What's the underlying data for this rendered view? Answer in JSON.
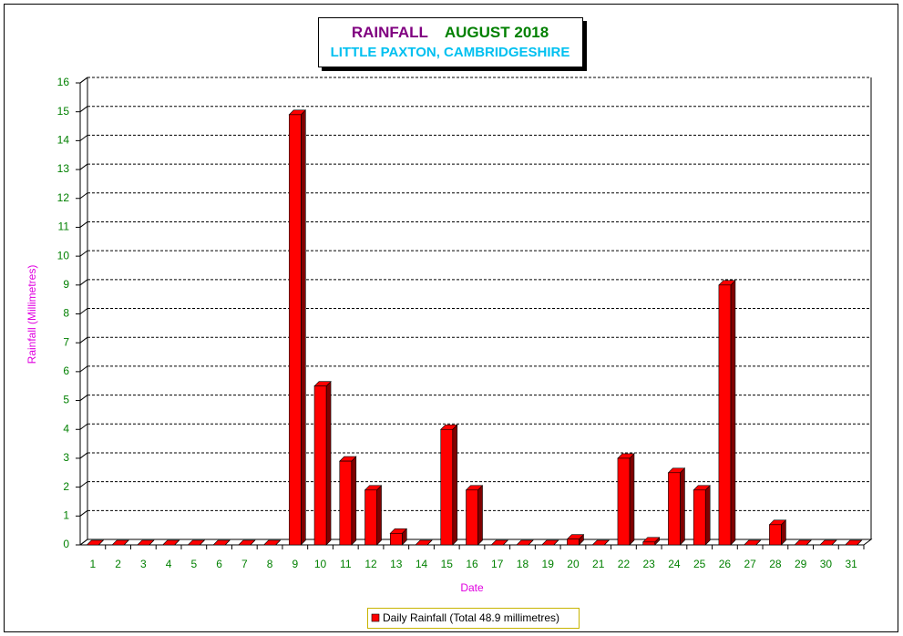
{
  "chart_data": {
    "type": "bar3d",
    "title": "RAINFALL",
    "title_color": "#800080",
    "title_date": "AUGUST 2018",
    "title_date_color": "#008000",
    "subtitle": "LITTLE PAXTON, CAMBRIDGESHIRE",
    "subtitle_color": "#00c0f0",
    "x_label": "Date",
    "y_label": "Rainfall  (Millimetres)",
    "label_color": "#e000e0",
    "tick_color": "#008000",
    "categories": [
      "1",
      "2",
      "3",
      "4",
      "5",
      "6",
      "7",
      "8",
      "9",
      "10",
      "11",
      "12",
      "13",
      "14",
      "15",
      "16",
      "17",
      "18",
      "19",
      "20",
      "21",
      "22",
      "23",
      "24",
      "25",
      "26",
      "27",
      "28",
      "29",
      "30",
      "31"
    ],
    "series": [
      {
        "name": "Daily Rainfall (Total 48.9 millimetres)",
        "color": "#ff0000",
        "values": [
          0,
          0,
          0,
          0,
          0,
          0,
          0,
          0,
          14.9,
          5.5,
          2.9,
          1.9,
          0.4,
          0,
          4.0,
          1.9,
          0,
          0,
          0,
          0.2,
          0,
          3.0,
          0.1,
          2.5,
          1.9,
          9.0,
          0,
          0.7,
          0,
          0,
          0
        ]
      }
    ],
    "ylim": [
      0,
      16
    ],
    "yticks": [
      0,
      1,
      2,
      3,
      4,
      5,
      6,
      7,
      8,
      9,
      10,
      11,
      12,
      13,
      14,
      15,
      16
    ],
    "grid": true
  }
}
